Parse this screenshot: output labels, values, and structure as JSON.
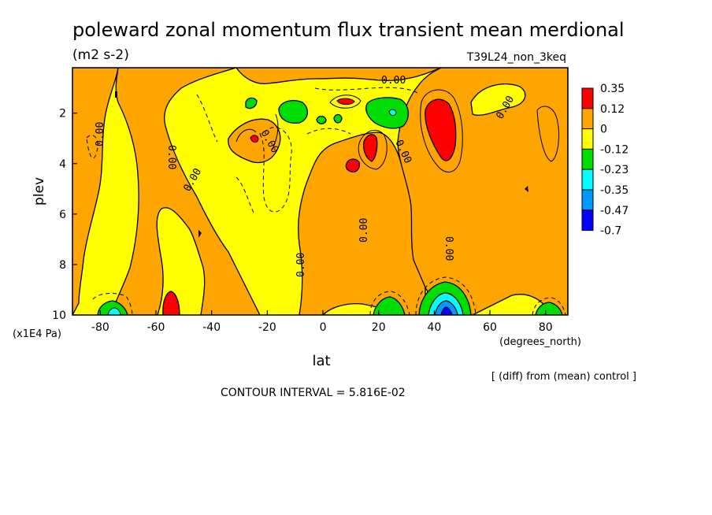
{
  "chart_data": {
    "type": "heatmap",
    "title": "poleward zonal momentum flux transient mean merdional",
    "units": "(m2 s-2)",
    "run_label": "T39L24_non_3keq",
    "xlabel": "lat",
    "x_units": "(degrees_north)",
    "ylabel": "plev",
    "y_units": "(x1E4 Pa)",
    "xlim": [
      -90,
      88
    ],
    "ylim": [
      10,
      0.2
    ],
    "x_ticks": [
      "-80",
      "-60",
      "-40",
      "-20",
      "0",
      "20",
      "40",
      "60",
      "80"
    ],
    "x_tick_values": [
      -80,
      -60,
      -40,
      -20,
      0,
      20,
      40,
      60,
      80
    ],
    "y_ticks": [
      "2",
      "4",
      "6",
      "8",
      "10"
    ],
    "y_tick_values": [
      2,
      4,
      6,
      8,
      10
    ],
    "contour_interval_text": "CONTOUR INTERVAL = 5.816E-02",
    "comparison_note": "[ (diff) from (mean) control ]",
    "contour_labels": [
      "0.00",
      "0.00",
      "0.00",
      "0.00",
      "0.00",
      "0.00",
      "0.00",
      "0.00",
      "0.00",
      "0.00"
    ],
    "legend": {
      "placement": "right",
      "levels": [
        "0.35",
        "0.12",
        "0",
        "-0.12",
        "-0.23",
        "-0.35",
        "-0.47",
        "-0.7"
      ],
      "colors": [
        "#ff0000",
        "#ffa500",
        "#ffff00",
        "#00dd00",
        "#00ffff",
        "#0099ff",
        "#0000ff"
      ]
    },
    "regions": [
      {
        "category": "positive",
        "color": "#ffa500",
        "lat": [
          -90,
          -75
        ],
        "plev": [
          0.2,
          9.5
        ]
      },
      {
        "category": "positive",
        "color": "#ffa500",
        "lat": [
          -68,
          -40
        ],
        "plev": [
          1.5,
          9.8
        ]
      },
      {
        "category": "positive",
        "color": "#ffa500",
        "lat": [
          -30,
          -5
        ],
        "plev": [
          4.5,
          10
        ]
      },
      {
        "category": "positive",
        "color": "#ffa500",
        "lat": [
          0,
          88
        ],
        "plev": [
          3.5,
          8.5
        ]
      },
      {
        "category": "positive",
        "color": "#ffa500",
        "lat": [
          33,
          88
        ],
        "plev": [
          0.2,
          9.5
        ]
      },
      {
        "category": "max",
        "color": "#ff0000",
        "lat": [
          38,
          48
        ],
        "plev": [
          1.7,
          3.8
        ]
      },
      {
        "category": "max",
        "color": "#ff0000",
        "lat": [
          13,
          20
        ],
        "plev": [
          2.8,
          4.2
        ]
      },
      {
        "category": "max",
        "color": "#ff0000",
        "lat": [
          -58,
          -52
        ],
        "plev": [
          9.0,
          10
        ]
      },
      {
        "category": "negative",
        "color": "#00dd00",
        "lat": [
          -80,
          -70
        ],
        "plev": [
          9.5,
          10
        ]
      },
      {
        "category": "negative",
        "color": "#00dd00",
        "lat": [
          18,
          30
        ],
        "plev": [
          9.3,
          10
        ]
      },
      {
        "category": "negative",
        "color": "#00dd00",
        "lat": [
          35,
          52
        ],
        "plev": [
          8.8,
          10
        ]
      },
      {
        "category": "min",
        "color": "#0000ff",
        "lat": [
          40,
          50
        ],
        "plev": [
          9.4,
          10
        ]
      },
      {
        "category": "negative",
        "color": "#00dd00",
        "lat": [
          -25,
          -20
        ],
        "plev": [
          1.2,
          1.7
        ]
      },
      {
        "category": "negative",
        "color": "#00dd00",
        "lat": [
          -12,
          0
        ],
        "plev": [
          1.5,
          2.3
        ]
      },
      {
        "category": "negative",
        "color": "#00dd00",
        "lat": [
          18,
          32
        ],
        "plev": [
          1.3,
          2.5
        ]
      },
      {
        "category": "negative",
        "color": "#00dd00",
        "lat": [
          75,
          88
        ],
        "plev": [
          9.5,
          10
        ]
      }
    ]
  }
}
